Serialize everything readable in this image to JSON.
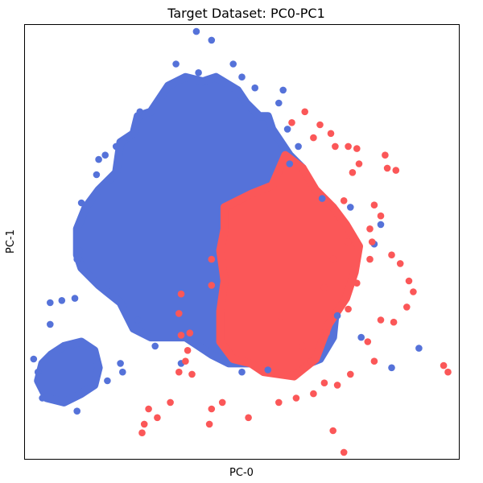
{
  "chart_data": {
    "type": "scatter",
    "title": "Target Dataset: PC0-PC1",
    "xlabel": "PC-0",
    "ylabel": "PC-1",
    "xlim": [
      0,
      100
    ],
    "ylim": [
      0,
      100
    ],
    "x_ticks_shown": false,
    "y_ticks_shown": false,
    "grid": false,
    "legend": "none",
    "series": [
      {
        "color": "#5572d9",
        "values": [
          {
            "x": 39.5,
            "y": 98.5
          },
          {
            "x": 43.0,
            "y": 96.5
          },
          {
            "x": 34.8,
            "y": 91.0
          },
          {
            "x": 40.0,
            "y": 89.0
          },
          {
            "x": 48.0,
            "y": 91.0
          },
          {
            "x": 50.0,
            "y": 88.0
          },
          {
            "x": 53.0,
            "y": 85.5
          },
          {
            "x": 59.5,
            "y": 85.0
          },
          {
            "x": 58.5,
            "y": 82.0
          },
          {
            "x": 26.5,
            "y": 80.0
          },
          {
            "x": 24.0,
            "y": 74.0
          },
          {
            "x": 21.0,
            "y": 72.0
          },
          {
            "x": 18.5,
            "y": 70.0
          },
          {
            "x": 17.0,
            "y": 69.0
          },
          {
            "x": 16.5,
            "y": 65.5
          },
          {
            "x": 13.0,
            "y": 59.0
          },
          {
            "x": 12.5,
            "y": 48.0
          },
          {
            "x": 12.0,
            "y": 46.0
          },
          {
            "x": 8.5,
            "y": 36.5
          },
          {
            "x": 5.8,
            "y": 36.0
          },
          {
            "x": 11.5,
            "y": 37.0
          },
          {
            "x": 5.8,
            "y": 31.0
          },
          {
            "x": 2.0,
            "y": 23.0
          },
          {
            "x": 3.0,
            "y": 20.0
          },
          {
            "x": 4.0,
            "y": 14.0
          },
          {
            "x": 12.0,
            "y": 11.0
          },
          {
            "x": 22.0,
            "y": 22.0
          },
          {
            "x": 22.5,
            "y": 20.0
          },
          {
            "x": 19.0,
            "y": 18.0
          },
          {
            "x": 26.0,
            "y": 32.0
          },
          {
            "x": 30.0,
            "y": 26.0
          },
          {
            "x": 36.0,
            "y": 22.0
          },
          {
            "x": 50.0,
            "y": 20.0
          },
          {
            "x": 56.0,
            "y": 20.5
          },
          {
            "x": 90.8,
            "y": 25.5
          },
          {
            "x": 84.5,
            "y": 21.0
          },
          {
            "x": 77.5,
            "y": 28.0
          },
          {
            "x": 72.0,
            "y": 33.0
          },
          {
            "x": 80.5,
            "y": 49.5
          },
          {
            "x": 82.0,
            "y": 54.0
          },
          {
            "x": 75.0,
            "y": 58.0
          },
          {
            "x": 68.5,
            "y": 60.0
          },
          {
            "x": 63.0,
            "y": 72.0
          },
          {
            "x": 61.0,
            "y": 68.0
          },
          {
            "x": 60.5,
            "y": 76.0
          }
        ]
      },
      {
        "color": "#fb5758",
        "values": [
          {
            "x": 61.5,
            "y": 77.5
          },
          {
            "x": 64.5,
            "y": 80.0
          },
          {
            "x": 66.5,
            "y": 74.0
          },
          {
            "x": 68.0,
            "y": 77.0
          },
          {
            "x": 70.5,
            "y": 75.0
          },
          {
            "x": 71.5,
            "y": 72.0
          },
          {
            "x": 74.5,
            "y": 72.0
          },
          {
            "x": 76.5,
            "y": 71.5
          },
          {
            "x": 77.0,
            "y": 68.0
          },
          {
            "x": 75.5,
            "y": 66.0
          },
          {
            "x": 83.0,
            "y": 70.0
          },
          {
            "x": 83.5,
            "y": 67.0
          },
          {
            "x": 85.5,
            "y": 66.5
          },
          {
            "x": 80.5,
            "y": 58.5
          },
          {
            "x": 82.0,
            "y": 56.0
          },
          {
            "x": 79.5,
            "y": 53.0
          },
          {
            "x": 80.0,
            "y": 50.0
          },
          {
            "x": 79.5,
            "y": 46.0
          },
          {
            "x": 84.5,
            "y": 47.0
          },
          {
            "x": 86.5,
            "y": 45.0
          },
          {
            "x": 88.5,
            "y": 41.0
          },
          {
            "x": 89.5,
            "y": 38.5
          },
          {
            "x": 88.0,
            "y": 35.0
          },
          {
            "x": 85.0,
            "y": 31.5
          },
          {
            "x": 82.0,
            "y": 32.0
          },
          {
            "x": 79.0,
            "y": 27.0
          },
          {
            "x": 80.5,
            "y": 22.5
          },
          {
            "x": 75.0,
            "y": 19.5
          },
          {
            "x": 72.0,
            "y": 17.0
          },
          {
            "x": 69.0,
            "y": 17.5
          },
          {
            "x": 66.5,
            "y": 15.0
          },
          {
            "x": 62.5,
            "y": 14.0
          },
          {
            "x": 58.5,
            "y": 13.0
          },
          {
            "x": 51.5,
            "y": 9.5
          },
          {
            "x": 45.5,
            "y": 13.0
          },
          {
            "x": 43.0,
            "y": 11.5
          },
          {
            "x": 42.5,
            "y": 8.0
          },
          {
            "x": 38.5,
            "y": 19.5
          },
          {
            "x": 37.0,
            "y": 22.5
          },
          {
            "x": 37.5,
            "y": 25.0
          },
          {
            "x": 35.5,
            "y": 20.0
          },
          {
            "x": 33.5,
            "y": 13.0
          },
          {
            "x": 28.5,
            "y": 11.5
          },
          {
            "x": 27.5,
            "y": 8.0
          },
          {
            "x": 27.0,
            "y": 6.0
          },
          {
            "x": 30.5,
            "y": 9.5
          },
          {
            "x": 36.0,
            "y": 28.5
          },
          {
            "x": 35.5,
            "y": 33.5
          },
          {
            "x": 36.0,
            "y": 38.0
          },
          {
            "x": 38.0,
            "y": 29.0
          },
          {
            "x": 43.0,
            "y": 40.0
          },
          {
            "x": 43.0,
            "y": 46.0
          },
          {
            "x": 71.0,
            "y": 6.5
          },
          {
            "x": 96.5,
            "y": 21.5
          },
          {
            "x": 97.5,
            "y": 20.0
          },
          {
            "x": 73.5,
            "y": 1.5
          },
          {
            "x": 59.0,
            "y": 33.0
          },
          {
            "x": 69.5,
            "y": 29.0
          },
          {
            "x": 74.5,
            "y": 34.5
          },
          {
            "x": 76.5,
            "y": 40.5
          },
          {
            "x": 69.0,
            "y": 39.5
          },
          {
            "x": 71.0,
            "y": 46.0
          },
          {
            "x": 73.5,
            "y": 59.5
          },
          {
            "x": 74.5,
            "y": 50.0
          },
          {
            "x": 66.0,
            "y": 22.5
          },
          {
            "x": 64.0,
            "y": 26.0
          }
        ]
      }
    ]
  }
}
